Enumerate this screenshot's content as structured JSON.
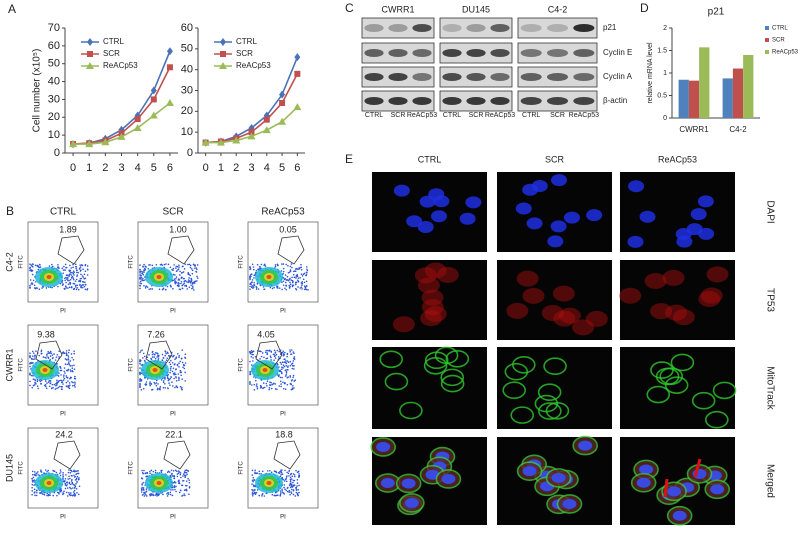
{
  "panel_labels": [
    "A",
    "B",
    "C",
    "D",
    "E"
  ],
  "chart_data": [
    {
      "type": "line",
      "ylabel": "Cell number (x10⁵)",
      "x": [
        0,
        1,
        2,
        3,
        4,
        5,
        6
      ],
      "xlim": [
        -0.5,
        6.5
      ],
      "xticks": [
        0,
        1,
        2,
        3,
        4,
        5,
        6
      ],
      "ylim": [
        0,
        70
      ],
      "yticks": [
        0,
        10,
        20,
        30,
        40,
        50,
        60,
        70
      ],
      "legend": "upper left",
      "series": [
        {
          "name": "CTRL",
          "color": "#4a72b8",
          "marker": "diamond",
          "values": [
            5,
            5.5,
            8,
            13,
            21,
            35,
            57
          ]
        },
        {
          "name": "SCR",
          "color": "#c0504d",
          "marker": "square",
          "values": [
            5,
            5.5,
            7,
            11,
            19,
            30,
            48
          ]
        },
        {
          "name": "ReACp53",
          "color": "#9bbb59",
          "marker": "triangle",
          "values": [
            5,
            5,
            6,
            9,
            14,
            21,
            28
          ]
        }
      ]
    },
    {
      "type": "line",
      "x": [
        0,
        1,
        2,
        3,
        4,
        5,
        6
      ],
      "xlim": [
        -0.5,
        6.5
      ],
      "xticks": [
        0,
        1,
        2,
        3,
        4,
        5,
        6
      ],
      "ylim": [
        0,
        60
      ],
      "yticks": [
        0,
        10,
        20,
        30,
        40,
        50,
        60
      ],
      "legend": "upper left",
      "series": [
        {
          "name": "CTRL",
          "color": "#4a72b8",
          "marker": "diamond",
          "values": [
            5,
            5.5,
            8,
            12,
            18,
            28,
            46
          ]
        },
        {
          "name": "SCR",
          "color": "#c0504d",
          "marker": "square",
          "values": [
            5,
            5.5,
            7,
            10,
            16,
            24,
            38
          ]
        },
        {
          "name": "ReACp53",
          "color": "#9bbb59",
          "marker": "triangle",
          "values": [
            5,
            5,
            6,
            8,
            11,
            15,
            22
          ]
        }
      ]
    },
    {
      "type": "bar",
      "title": "p21",
      "ylabel": "relative mRNA level",
      "categories": [
        "CWRR1",
        "C4-2"
      ],
      "ylim": [
        0,
        2
      ],
      "yticks": [
        0,
        0.5,
        1,
        1.5,
        2
      ],
      "legend": "right",
      "series": [
        {
          "name": "CTRL",
          "color": "#4f81bd",
          "values": [
            0.85,
            0.88
          ]
        },
        {
          "name": "SCR",
          "color": "#c0504d",
          "values": [
            0.83,
            1.1
          ]
        },
        {
          "name": "ReACp53",
          "color": "#9bbb59",
          "values": [
            1.57,
            1.4
          ]
        }
      ]
    }
  ],
  "flow": {
    "columns": [
      "CTRL",
      "SCR",
      "ReACp53"
    ],
    "rows": [
      "C4-2",
      "CWRR1",
      "DU145"
    ],
    "x_label": "PI",
    "y_label": "FITC",
    "percentages": [
      [
        "1.89",
        "1.00",
        "0.05"
      ],
      [
        "9.38",
        "7.26",
        "4.05"
      ],
      [
        "24.2",
        "22.1",
        "18.8"
      ]
    ]
  },
  "blot": {
    "groups": [
      "CWRR1",
      "DU145",
      "C4-2"
    ],
    "lanes": [
      "CTRL",
      "SCR",
      "ReACp53"
    ],
    "proteins": [
      "p21",
      "Cyclin E",
      "Cyclin A",
      "β-actin"
    ]
  },
  "microscopy": {
    "columns": [
      "CTRL",
      "SCR",
      "ReACp53"
    ],
    "rows": [
      "DAPI",
      "TP53",
      "MitoTrack",
      "Merged"
    ]
  }
}
